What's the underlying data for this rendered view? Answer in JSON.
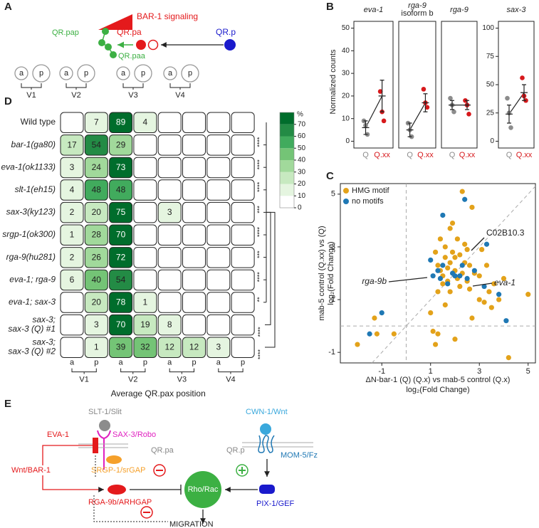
{
  "panel_labels": [
    "A",
    "B",
    "C",
    "D",
    "E"
  ],
  "panel_a": {
    "signal": "BAR-1 signaling",
    "cells": [
      "QR.pap",
      "QR.pa",
      "QR.p",
      "QR.paa"
    ],
    "positions": [
      "a",
      "p"
    ],
    "regions": [
      "V1",
      "V2",
      "V3",
      "V4"
    ]
  },
  "panel_e": {
    "slit": "SLT-1/Slit",
    "eva1": "EVA-1",
    "robo": "SAX-3/Robo",
    "wnt_bar1": "Wnt/BAR-1",
    "srgp1": "SRGP-1/srGAP",
    "rga9b": "RGA-9b/ARHGAP",
    "qrpa": "QR.pa",
    "qrp": "QR.p",
    "rho": "Rho/Rac",
    "cwn1": "CWN-1/Wnt",
    "mom5": "MOM-5/Fz",
    "pix1": "PIX-1/GEF",
    "migration": "MIGRATION"
  },
  "chart_data": [
    {
      "type": "dot",
      "title": [
        "eva-1"
      ],
      "ylabel": "Normalized counts",
      "categories": [
        "Q",
        "Q.xx"
      ],
      "colors": [
        "#8c8c8c",
        "#d7191c"
      ],
      "points": [
        [
          9,
          7,
          3
        ],
        [
          22,
          13,
          9
        ]
      ],
      "means": [
        6,
        20
      ],
      "errors": [
        3,
        7
      ],
      "ylim": [
        -3,
        53
      ],
      "yticks": [
        0,
        10,
        20,
        30,
        40,
        50
      ]
    },
    {
      "type": "dot",
      "title": [
        "rga-9",
        "isoform b"
      ],
      "categories": [
        "Q",
        "Q.xx"
      ],
      "colors": [
        "#8c8c8c",
        "#d7191c"
      ],
      "points": [
        [
          8,
          5,
          2
        ],
        [
          23,
          17,
          15
        ]
      ],
      "means": [
        5,
        17
      ],
      "errors": [
        3,
        4
      ],
      "ylim": [
        -3,
        53
      ]
    },
    {
      "type": "dot",
      "title": [
        "rga-9"
      ],
      "categories": [
        "Q",
        "Q.xx"
      ],
      "colors": [
        "#8c8c8c",
        "#d7191c"
      ],
      "points": [
        [
          19,
          16,
          13
        ],
        [
          18,
          16,
          12
        ]
      ],
      "means": [
        16,
        16
      ],
      "errors": [
        2,
        2
      ],
      "ylim": [
        -3,
        53
      ]
    },
    {
      "type": "dot",
      "title": [
        "sax-3"
      ],
      "categories": [
        "Q",
        "Q.xx"
      ],
      "colors": [
        "#8c8c8c",
        "#d7191c"
      ],
      "points": [
        [
          38,
          25,
          12
        ],
        [
          56,
          40,
          36
        ]
      ],
      "means": [
        24,
        43
      ],
      "errors": [
        8,
        7
      ],
      "ylim": [
        -6,
        106
      ],
      "yticks": [
        0,
        25,
        50,
        75,
        100
      ]
    },
    {
      "type": "scatter",
      "xlabel": [
        "ΔN-bar-1 (Q) (Q.x) vs mab-5 control (Q.x)",
        "log₂(Fold Change)"
      ],
      "ylabel": [
        "mab-5 control (Q.xx) vs (Q)",
        "log₂(Fold Change)"
      ],
      "xlim": [
        -2.7,
        5.3
      ],
      "ylim": [
        -1.4,
        5.4
      ],
      "xticks": [
        -1,
        1,
        3,
        5
      ],
      "yticks": [
        -1,
        1,
        3,
        5
      ],
      "legend": "top-left",
      "annotations": [
        "C02B10.3",
        "rga-9b",
        "eva-1"
      ],
      "series": [
        {
          "name": "HMG motif",
          "color": "#e3a21a",
          "x": [
            -2,
            -1.2,
            -1.3,
            -0.5,
            1,
            1.1,
            1.2,
            1.3,
            1.2,
            1.3,
            1.4,
            1.4,
            1.5,
            1.5,
            1.6,
            1.6,
            1.7,
            1.7,
            1.8,
            1.8,
            1.9,
            1.9,
            2.0,
            2.0,
            2.1,
            2.1,
            2.2,
            2.2,
            2.3,
            2.3,
            2.4,
            2.4,
            2.5,
            2.6,
            2.6,
            2.7,
            2.7,
            2.8,
            3.0,
            3.0,
            3.1,
            3.2,
            3.3,
            3.4,
            3.5,
            3.6,
            3.8,
            4.0,
            4.2,
            5.0,
            1.3,
            1.6,
            2.0,
            1.8,
            2.5
          ],
          "y": [
            -0.7,
            -0.3,
            0.3,
            -0.3,
            0.5,
            -0.2,
            -0.7,
            1.3,
            2.8,
            2.3,
            2.1,
            3.3,
            1.9,
            1.6,
            2.6,
            3.0,
            2.2,
            1.7,
            2.4,
            3.7,
            3.9,
            2.8,
            2.6,
            2.1,
            1.8,
            3.3,
            2.7,
            1.5,
            2.0,
            5.1,
            3.1,
            2.4,
            1.7,
            2.3,
            1.4,
            4.5,
            0.3,
            2.0,
            1.9,
            1.0,
            2.9,
            0.9,
            2.3,
            1.3,
            0.7,
            1.6,
            1.0,
            1.8,
            -1.2,
            1.2,
            -0.3,
            0.8,
            -0.5,
            1.3,
            2.9
          ]
        },
        {
          "name": "no motifs",
          "color": "#1f78b4",
          "x": [
            -1,
            -1.5,
            1,
            1.3,
            1.1,
            1.4,
            1.7,
            1.9,
            2.2,
            2.3,
            2.5,
            2.4,
            1.5,
            2.8,
            3.2,
            3.3,
            3.8,
            4.1,
            1.5,
            2.0
          ],
          "y": [
            0.5,
            -0.3,
            2.5,
            2.1,
            1.9,
            1.8,
            1.6,
            2.0,
            1.9,
            2.3,
            1.8,
            4.8,
            4.2,
            2.1,
            1.5,
            3.1,
            1.2,
            0.2,
            2.3,
            1.9
          ]
        }
      ]
    },
    {
      "type": "heatmap",
      "xlabel": "Average QR.pax position",
      "columns": [
        "a",
        "p",
        "a",
        "p",
        "a",
        "p",
        "a",
        "p"
      ],
      "groups": [
        "V1",
        "V2",
        "V3",
        "V4"
      ],
      "rows": [
        {
          "label": [
            "Wild type"
          ],
          "values": [
            null,
            7,
            89,
            4,
            null,
            null,
            null,
            null
          ]
        },
        {
          "label": [
            "bar-1(ga80)"
          ],
          "values": [
            17,
            54,
            29,
            null,
            null,
            null,
            null,
            null
          ]
        },
        {
          "label": [
            "eva-1(ok1133)"
          ],
          "values": [
            3,
            24,
            73,
            null,
            null,
            null,
            null,
            null
          ]
        },
        {
          "label": [
            "slt-1(eh15)"
          ],
          "values": [
            4,
            48,
            48,
            null,
            null,
            null,
            null,
            null
          ]
        },
        {
          "label": [
            "sax-3(ky123)"
          ],
          "values": [
            2,
            20,
            75,
            null,
            3,
            null,
            null,
            null
          ]
        },
        {
          "label": [
            "srgp-1(ok300)"
          ],
          "values": [
            1,
            28,
            70,
            null,
            null,
            null,
            null,
            null
          ]
        },
        {
          "label": [
            "rga-9(hu281)"
          ],
          "values": [
            2,
            26,
            72,
            null,
            null,
            null,
            null,
            null
          ]
        },
        {
          "label": [
            "eva-1; rga-9"
          ],
          "values": [
            6,
            40,
            54,
            null,
            null,
            null,
            null,
            null
          ]
        },
        {
          "label": [
            "eva-1; sax-3"
          ],
          "values": [
            null,
            20,
            78,
            1,
            null,
            null,
            null,
            null
          ]
        },
        {
          "label": [
            "sax-3;",
            "sax-3 (Q) #1"
          ],
          "values": [
            null,
            3,
            70,
            19,
            8,
            null,
            null,
            null
          ]
        },
        {
          "label": [
            "sax-3;",
            "sax-3 (Q) #2"
          ],
          "values": [
            null,
            1,
            39,
            32,
            12,
            12,
            3,
            null
          ]
        }
      ],
      "legend_title": "%",
      "legend_lim": [
        0,
        80
      ],
      "legend_ticks": [
        0,
        10,
        20,
        30,
        40,
        50,
        60,
        70
      ],
      "colors": [
        "#ffffff",
        "#e5f5e0",
        "#c7e9c0",
        "#a1d99b",
        "#74c476",
        "#41ab5d",
        "#238b45",
        "#006d2c"
      ],
      "significance_vs_first": [
        "****",
        "****",
        "****",
        "***",
        "****",
        "***",
        "****",
        "**"
      ],
      "significance_vs_sax3": [
        "****",
        "****"
      ]
    }
  ]
}
